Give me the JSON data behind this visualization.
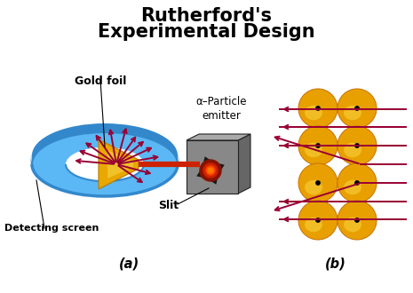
{
  "title_line1": "Rutherford's",
  "title_line2": "Experimental Design",
  "label_gold_foil": "Gold foil",
  "label_detecting_screen": "Detecting screen",
  "label_slit": "Slit",
  "label_emitter": "α–Particle\nemitter",
  "label_a": "(a)",
  "label_b": "(b)",
  "bg_color": "#ffffff",
  "title_color": "#000000",
  "arrow_color": "#990033",
  "beam_color": "#cc2200",
  "disk_face_color": "#5bb8f5",
  "disk_rim_color": "#3388cc",
  "disk_inner_shadow": "#2266aa",
  "gold_foil_color": "#e8a800",
  "gold_foil_highlight": "#f5d040",
  "atom_color_outer": "#e8a000",
  "atom_color_inner": "#f5c832",
  "box_front_color": "#888888",
  "box_top_color": "#aaaaaa",
  "box_right_color": "#666666",
  "box_cavity_color": "#1a1a1a",
  "glow_outer": "#cc2200",
  "glow_inner": "#ff5500"
}
